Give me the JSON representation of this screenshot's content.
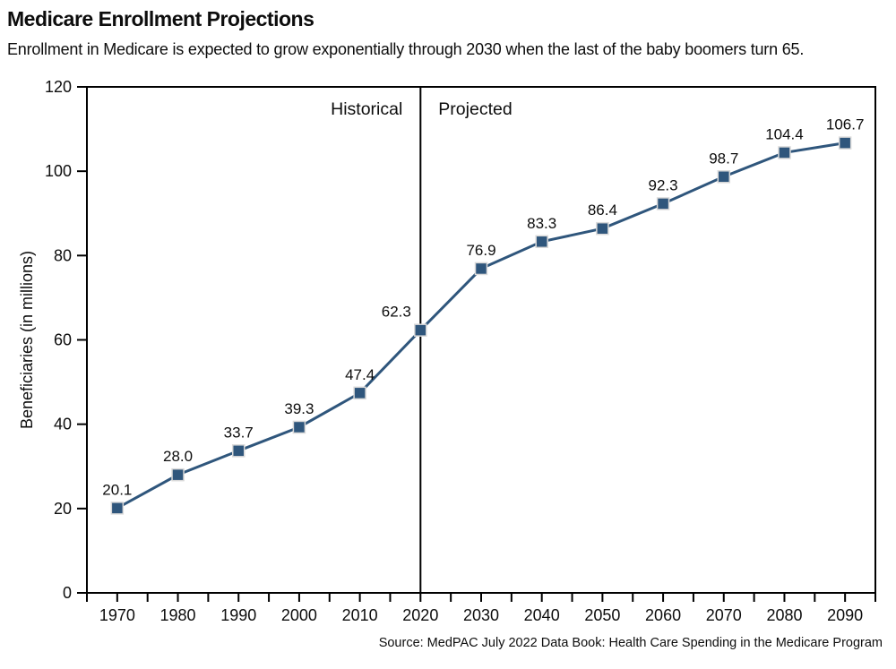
{
  "chart_data": {
    "type": "line",
    "title": "Medicare Enrollment Projections",
    "subtitle": "Enrollment in Medicare is expected to grow exponentially through 2030 when the last of the baby boomers turn 65.",
    "source": "Source: MedPAC July 2022 Data Book: Health Care Spending in the Medicare Program",
    "xlabel": "",
    "ylabel": "Beneficiaries (in millions)",
    "x": [
      1970,
      1980,
      1990,
      2000,
      2010,
      2020,
      2030,
      2040,
      2050,
      2060,
      2070,
      2080,
      2090
    ],
    "values": [
      20.1,
      28.0,
      33.7,
      39.3,
      47.4,
      62.3,
      76.9,
      83.3,
      86.4,
      92.3,
      98.7,
      104.4,
      106.7
    ],
    "data_labels": [
      "20.1",
      "28.0",
      "33.7",
      "39.3",
      "47.4",
      "62.3",
      "76.9",
      "83.3",
      "86.4",
      "92.3",
      "98.7",
      "104.4",
      "106.7"
    ],
    "ylim": [
      0,
      120
    ],
    "ytick_step": 20,
    "xlim": [
      1965,
      2095
    ],
    "xtick_minor_step": 5,
    "divider": {
      "year": 2020,
      "left_label": "Historical",
      "right_label": "Projected"
    },
    "grid": false,
    "legend": "none",
    "line_color": "#2F567C",
    "marker": "square",
    "marker_edge_color": "#d9d9d9",
    "axis_color": "#000000"
  }
}
